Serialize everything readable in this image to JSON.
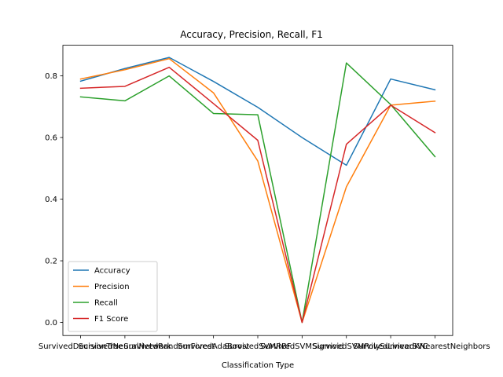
{
  "chart_data": {
    "type": "line",
    "title": "Accuracy, Precision, Recall, F1",
    "xlabel": "Classification Type",
    "ylabel": "",
    "ylim": [
      -0.0425,
      0.8995
    ],
    "yticks": [
      0.0,
      0.2,
      0.4,
      0.6,
      0.8
    ],
    "ytick_labels": [
      "0.0",
      "0.2",
      "0.4",
      "0.6",
      "0.8"
    ],
    "categories": [
      "SurvivedDecisionTree",
      "SurvivedNeuralNetwork",
      "SurvivedRandomForest",
      "SurvivedAdaBoost",
      "SurvivedSVMRBF",
      "SurvivedSVMSigmoid",
      "SurvivedSVMPoly",
      "SurvivedLinearSVC",
      "SurvivedKNearestNeighbors"
    ],
    "legend_position": "lower left",
    "series": [
      {
        "name": "Accuracy",
        "color": "#1f77b4",
        "values": [
          0.783,
          0.824,
          0.86,
          0.782,
          0.698,
          0.6,
          0.51,
          0.79,
          0.755
        ]
      },
      {
        "name": "Precision",
        "color": "#ff7f0e",
        "values": [
          0.79,
          0.82,
          0.856,
          0.745,
          0.524,
          0.0,
          0.44,
          0.705,
          0.718
        ]
      },
      {
        "name": "Recall",
        "color": "#2ca02c",
        "values": [
          0.732,
          0.719,
          0.8,
          0.678,
          0.674,
          0.0,
          0.842,
          0.707,
          0.538
        ]
      },
      {
        "name": "F1 Score",
        "color": "#d62728",
        "values": [
          0.76,
          0.766,
          0.828,
          0.71,
          0.591,
          0.0,
          0.578,
          0.705,
          0.616
        ]
      }
    ]
  }
}
